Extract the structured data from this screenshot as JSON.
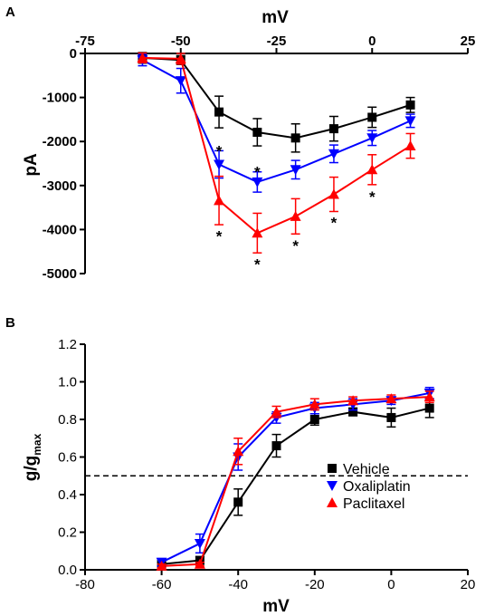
{
  "chart_data": [
    {
      "panel": "A",
      "type": "line",
      "xlabel": "mV",
      "ylabel": "pA",
      "xlim": [
        -75,
        25
      ],
      "ylim": [
        -5000,
        0
      ],
      "x_axis_position": "top",
      "x_ticks": [
        -75,
        -50,
        -25,
        0,
        25
      ],
      "x_tick_labels": [
        "-75",
        "-50",
        "-25",
        "0",
        "25"
      ],
      "y_ticks": [
        0,
        -1000,
        -2000,
        -3000,
        -4000,
        -5000
      ],
      "y_tick_labels": [
        "0",
        "-1000",
        "-2000",
        "-3000",
        "-4000",
        "-5000"
      ],
      "series": [
        {
          "key": "vehicle",
          "color": "#000000",
          "marker": "square",
          "x": [
            -60,
            -50,
            -40,
            -30,
            -20,
            -10,
            0,
            10
          ],
          "y": [
            -100,
            -150,
            -1330,
            -1790,
            -1920,
            -1710,
            -1450,
            -1170
          ],
          "err": [
            120,
            100,
            360,
            310,
            320,
            280,
            230,
            170
          ]
        },
        {
          "key": "oxaliplatin",
          "color": "#0000ff",
          "marker": "triangle-down",
          "x": [
            -60,
            -50,
            -40,
            -30,
            -20,
            -10,
            0,
            10
          ],
          "y": [
            -150,
            -620,
            -2520,
            -2920,
            -2640,
            -2280,
            -1920,
            -1530
          ],
          "err": [
            130,
            280,
            310,
            230,
            210,
            200,
            170,
            150
          ]
        },
        {
          "key": "paclitaxel",
          "color": "#ff0000",
          "marker": "triangle-up",
          "x": [
            -60,
            -50,
            -40,
            -30,
            -20,
            -10,
            0,
            10
          ],
          "y": [
            -100,
            -120,
            -3340,
            -4080,
            -3700,
            -3200,
            -2640,
            -2100
          ],
          "err": [
            110,
            120,
            550,
            450,
            400,
            390,
            340,
            280
          ]
        }
      ],
      "annotations": [
        {
          "text": "*",
          "x": -40,
          "y": -2150
        },
        {
          "text": "*",
          "x": -30,
          "y": -2620
        },
        {
          "text": "*",
          "x": -40,
          "y": -4080
        },
        {
          "text": "*",
          "x": -30,
          "y": -4720
        },
        {
          "text": "*",
          "x": -20,
          "y": -4300
        },
        {
          "text": "*",
          "x": -10,
          "y": -3780
        },
        {
          "text": "*",
          "x": 0,
          "y": -3190
        }
      ]
    },
    {
      "panel": "B",
      "type": "line",
      "xlabel": "mV",
      "ylabel_main": "g/g",
      "ylabel_sub": "max",
      "xlim": [
        -80,
        20
      ],
      "ylim": [
        0,
        1.2
      ],
      "x_ticks": [
        -80,
        -60,
        -40,
        -20,
        0,
        20
      ],
      "x_tick_labels": [
        "-80",
        "-60",
        "-40",
        "-20",
        "0",
        "20"
      ],
      "y_ticks": [
        0,
        0.2,
        0.4,
        0.6,
        0.8,
        1.0,
        1.2
      ],
      "y_tick_labels": [
        "0.0",
        "0.2",
        "0.4",
        "0.6",
        "0.8",
        "1.0",
        "1.2"
      ],
      "reference_line": 0.5,
      "legend_position": "right",
      "series": [
        {
          "key": "vehicle",
          "name": "Vehicle",
          "color": "#000000",
          "marker": "square",
          "x": [
            -60,
            -50,
            -40,
            -30,
            -20,
            -10,
            0,
            10
          ],
          "y": [
            0.03,
            0.05,
            0.36,
            0.66,
            0.8,
            0.84,
            0.81,
            0.86
          ],
          "err": [
            0.01,
            0.02,
            0.07,
            0.06,
            0.03,
            0.02,
            0.05,
            0.05
          ]
        },
        {
          "key": "oxaliplatin",
          "name": "Oxaliplatin",
          "color": "#0000ff",
          "marker": "triangle-down",
          "x": [
            -60,
            -50,
            -40,
            -30,
            -20,
            -10,
            0,
            10
          ],
          "y": [
            0.04,
            0.14,
            0.6,
            0.81,
            0.86,
            0.88,
            0.9,
            0.94
          ],
          "err": [
            0.02,
            0.05,
            0.07,
            0.03,
            0.03,
            0.03,
            0.02,
            0.03
          ]
        },
        {
          "key": "paclitaxel",
          "name": "Paclitaxel",
          "color": "#ff0000",
          "marker": "triangle-up",
          "x": [
            -60,
            -50,
            -40,
            -30,
            -20,
            -10,
            0,
            10
          ],
          "y": [
            0.02,
            0.03,
            0.63,
            0.84,
            0.88,
            0.9,
            0.91,
            0.92
          ],
          "err": [
            0.01,
            0.01,
            0.07,
            0.03,
            0.03,
            0.02,
            0.02,
            0.03
          ]
        }
      ]
    }
  ]
}
